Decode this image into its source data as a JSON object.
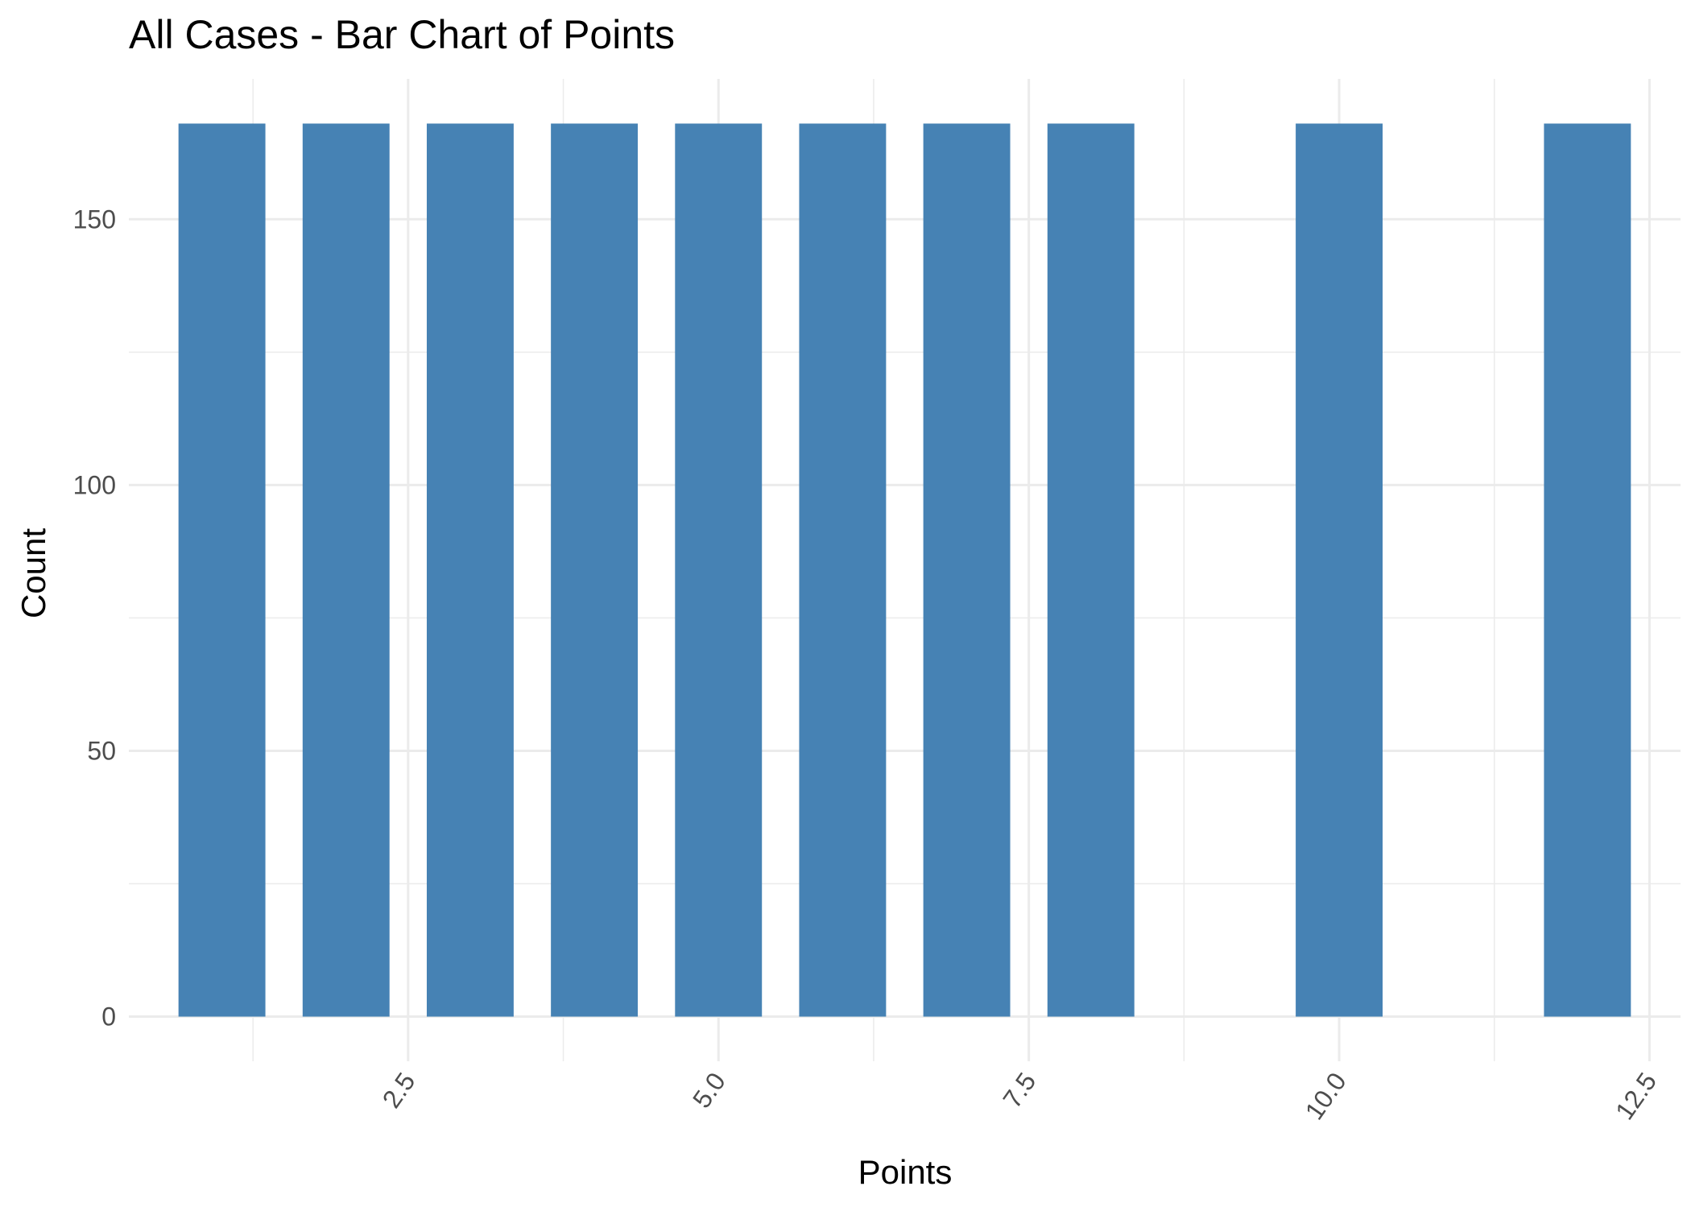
{
  "chart_data": {
    "type": "bar",
    "title": "All Cases - Bar Chart of  Points",
    "xlabel": "Points",
    "ylabel": "Count",
    "x": [
      1,
      2,
      3,
      4,
      5,
      6,
      7,
      8,
      10,
      12
    ],
    "values": [
      168,
      168,
      168,
      168,
      168,
      168,
      168,
      168,
      168,
      168
    ],
    "xlim": [
      0.25,
      12.75
    ],
    "ylim": [
      -8.4,
      176.4
    ],
    "x_ticks": [
      2.5,
      5.0,
      7.5,
      10.0,
      12.5
    ],
    "x_tick_labels": [
      "2.5",
      "5.0",
      "7.5",
      "10.0",
      "12.5"
    ],
    "x_minor_ticks": [
      1.25,
      3.75,
      6.25,
      8.75,
      11.25
    ],
    "y_ticks": [
      0,
      50,
      100,
      150
    ],
    "y_tick_labels": [
      "0",
      "50",
      "100",
      "150"
    ],
    "y_minor_ticks": [
      25,
      75,
      125
    ],
    "bar_color": "#4682b4",
    "grid": true,
    "legend": "none",
    "x_tick_rotation_deg": -55
  }
}
